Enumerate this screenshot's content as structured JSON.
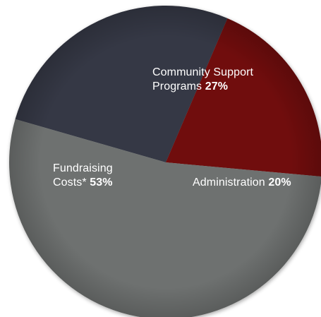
{
  "chart_data": {
    "type": "pie",
    "title": "",
    "slices": [
      {
        "key": "community",
        "label_lines": [
          "Community Support",
          "Programs"
        ],
        "value": 27,
        "pct_text": "27%",
        "color": "#343945"
      },
      {
        "key": "admin",
        "label_lines": [
          "Administration"
        ],
        "value": 20,
        "pct_text": "20%",
        "color": "#6f0c0f"
      },
      {
        "key": "fund",
        "label_lines": [
          "Fundraising",
          "Costs*"
        ],
        "value": 53,
        "pct_text": "53%",
        "color": "#6e716f"
      }
    ]
  }
}
